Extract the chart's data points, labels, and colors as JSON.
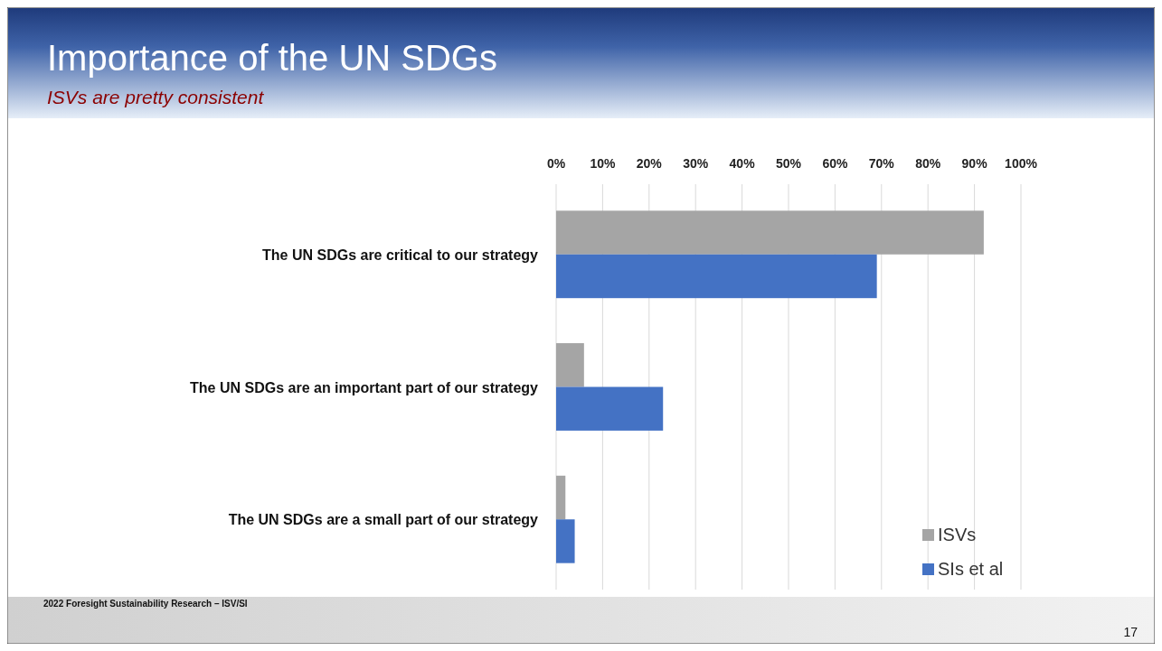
{
  "chart_data": {
    "type": "bar",
    "orientation": "horizontal",
    "title": "Importance of the UN SDGs",
    "subtitle": "ISVs are pretty consistent",
    "categories": [
      "The UN SDGs are critical to our strategy",
      "The UN SDGs are an important part of our strategy",
      "The UN SDGs are a small part of our strategy"
    ],
    "series": [
      {
        "name": "ISVs",
        "color": "#a5a5a5",
        "values": [
          92,
          6,
          2
        ]
      },
      {
        "name": "SIs et al",
        "color": "#4472c4",
        "values": [
          69,
          23,
          4
        ]
      }
    ],
    "xlim": [
      0,
      100
    ],
    "xticks": [
      {
        "value": 0,
        "label": "0%"
      },
      {
        "value": 10,
        "label": "10%"
      },
      {
        "value": 20,
        "label": "20%"
      },
      {
        "value": 30,
        "label": "30%"
      },
      {
        "value": 40,
        "label": "40%"
      },
      {
        "value": 50,
        "label": "50%"
      },
      {
        "value": 60,
        "label": "60%"
      },
      {
        "value": 70,
        "label": "70%"
      },
      {
        "value": 80,
        "label": "80%"
      },
      {
        "value": 90,
        "label": "90%"
      },
      {
        "value": 100,
        "label": "100%"
      }
    ],
    "grid": "x",
    "legend": "bottom right",
    "annotations": [
      "2022 Foresight Sustainability Research – ISV/SI",
      "17"
    ]
  }
}
